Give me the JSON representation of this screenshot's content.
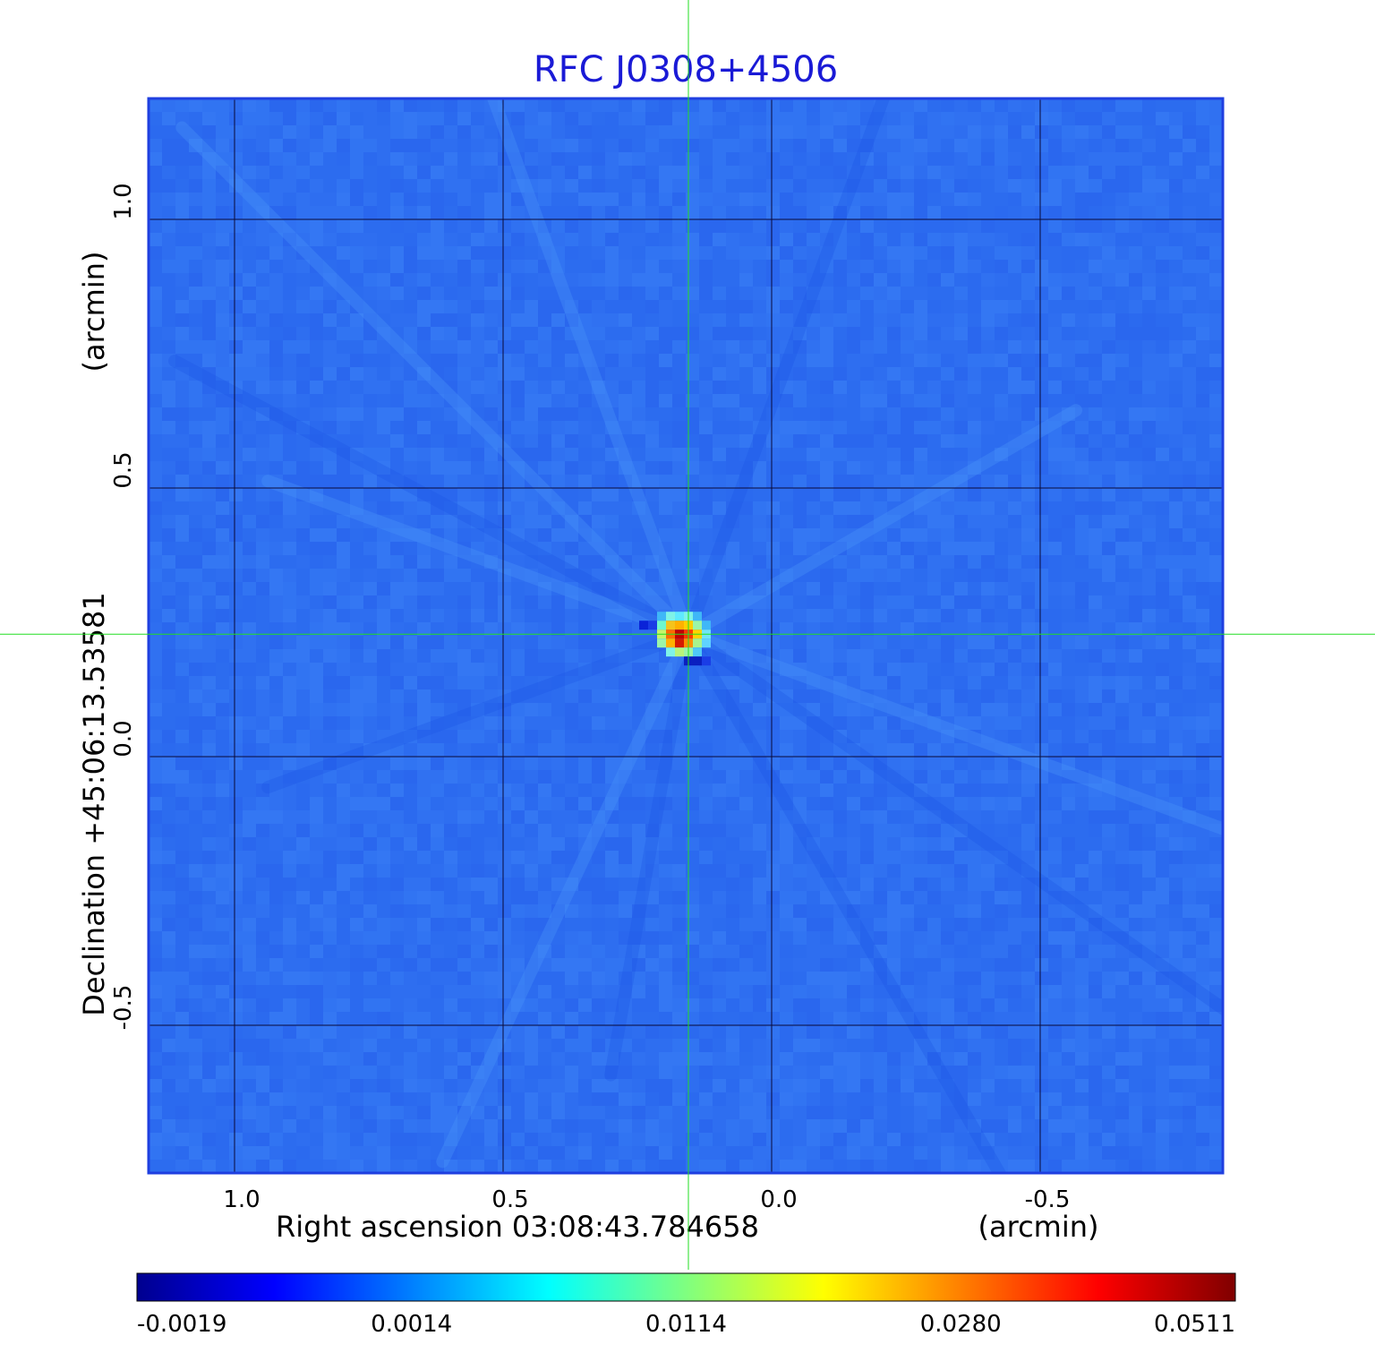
{
  "chart_data": {
    "type": "heatmap",
    "title": "RFC J0308+4506",
    "xlabel": "Right ascension  03:08:43.784658",
    "xunit": "(arcmin)",
    "ylabel": "Declination  +45:06:13.53581",
    "yunit": "(arcmin)",
    "x_ticks": [
      "1.0",
      "0.5",
      "0.0",
      "-0.5"
    ],
    "y_ticks": [
      "1.0",
      "0.5",
      "0.0",
      "-0.5"
    ],
    "xlim": [
      1.16,
      -0.84
    ],
    "ylim": [
      -0.775,
      1.225
    ],
    "grid": true,
    "crosshair": {
      "x": 0.155,
      "y": 0.228
    },
    "peak": {
      "x": 0.155,
      "y": 0.228,
      "value": 0.0511
    },
    "colorbar": {
      "ticks": [
        "-0.0019",
        "0.0014",
        "0.0114",
        "0.0280",
        "0.0511"
      ],
      "min": -0.0019,
      "max": 0.0511,
      "colormap": "jet"
    },
    "colors": {
      "title": "#1a1ad6",
      "frame": "#1f3fe0",
      "crosshair": "#22dd22",
      "background_cell": "#2e6ef0"
    }
  }
}
